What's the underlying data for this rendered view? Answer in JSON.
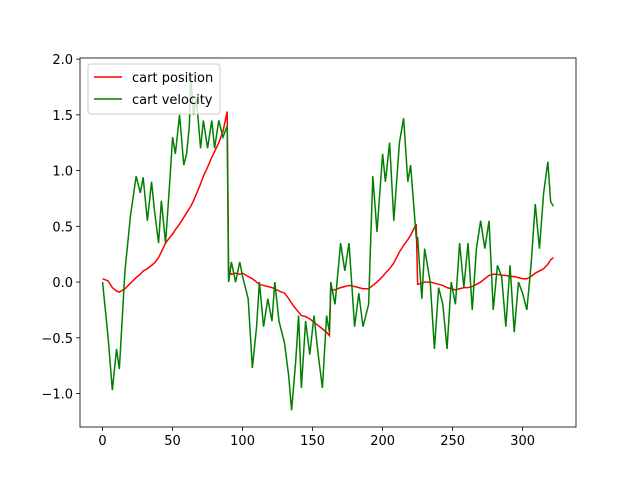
{
  "chart_data": {
    "type": "line",
    "x": [
      0,
      4,
      7,
      10,
      12,
      16,
      20,
      24,
      27,
      29,
      32,
      35,
      37,
      40,
      42,
      45,
      48,
      50,
      52,
      55,
      58,
      60,
      62,
      63,
      65,
      67,
      70,
      72,
      75,
      78,
      80,
      83,
      86,
      89,
      90,
      92,
      95,
      98,
      100,
      104,
      107,
      110,
      112,
      115,
      118,
      121,
      123,
      126,
      130,
      133,
      135,
      138,
      140,
      142,
      145,
      148,
      151,
      154,
      157,
      160,
      162,
      163,
      166,
      170,
      173,
      176,
      180,
      183,
      186,
      190,
      193,
      196,
      200,
      202,
      205,
      208,
      212,
      215,
      218,
      220,
      224,
      225,
      228,
      230,
      234,
      237,
      240,
      243,
      246,
      249,
      252,
      255,
      258,
      261,
      264,
      267,
      270,
      273,
      276,
      279,
      282,
      285,
      288,
      291,
      294,
      297,
      300,
      303,
      306,
      309,
      312,
      315,
      318,
      320,
      322
    ],
    "series": [
      {
        "name": "cart position",
        "color": "#ff0000",
        "values": [
          0.03,
          0.01,
          -0.05,
          -0.08,
          -0.09,
          -0.06,
          -0.01,
          0.04,
          0.07,
          0.1,
          0.12,
          0.15,
          0.17,
          0.22,
          0.27,
          0.35,
          0.4,
          0.43,
          0.47,
          0.52,
          0.58,
          0.62,
          0.66,
          0.68,
          0.73,
          0.79,
          0.88,
          0.95,
          1.03,
          1.12,
          1.17,
          1.25,
          1.35,
          1.53,
          0.1,
          0.07,
          0.08,
          0.07,
          0.08,
          0.05,
          0.03,
          0.0,
          -0.02,
          -0.03,
          -0.04,
          -0.05,
          -0.06,
          -0.08,
          -0.1,
          -0.15,
          -0.19,
          -0.24,
          -0.27,
          -0.3,
          -0.31,
          -0.33,
          -0.36,
          -0.39,
          -0.42,
          -0.45,
          -0.48,
          -0.07,
          -0.07,
          -0.05,
          -0.04,
          -0.03,
          -0.04,
          -0.05,
          -0.06,
          -0.06,
          -0.03,
          0.0,
          0.05,
          0.08,
          0.12,
          0.17,
          0.27,
          0.33,
          0.38,
          0.42,
          0.52,
          -0.02,
          -0.01,
          0.0,
          0.0,
          -0.01,
          -0.02,
          -0.03,
          -0.05,
          -0.06,
          -0.07,
          -0.06,
          -0.05,
          -0.05,
          -0.04,
          -0.02,
          0.0,
          0.03,
          0.06,
          0.07,
          0.07,
          0.06,
          0.06,
          0.05,
          0.05,
          0.04,
          0.03,
          0.03,
          0.05,
          0.08,
          0.1,
          0.12,
          0.16,
          0.2,
          0.22
        ]
      },
      {
        "name": "cart velocity",
        "color": "#008000",
        "values": [
          0.0,
          -0.5,
          -0.97,
          -0.6,
          -0.78,
          0.1,
          0.6,
          0.95,
          0.8,
          0.94,
          0.55,
          0.9,
          0.65,
          0.35,
          0.73,
          0.35,
          0.9,
          1.3,
          1.15,
          1.5,
          1.05,
          1.15,
          1.4,
          1.85,
          1.5,
          1.65,
          1.2,
          1.45,
          1.2,
          1.45,
          1.2,
          1.45,
          1.3,
          1.4,
          0.0,
          0.18,
          0.0,
          0.18,
          0.05,
          -0.15,
          -0.77,
          -0.4,
          0.0,
          -0.4,
          -0.15,
          -0.35,
          0.0,
          -0.35,
          -0.55,
          -0.85,
          -1.15,
          -0.7,
          -0.3,
          -0.95,
          -0.35,
          -0.65,
          -0.3,
          -0.65,
          -0.95,
          -0.3,
          -0.45,
          0.0,
          -0.2,
          0.35,
          0.1,
          0.35,
          -0.4,
          -0.1,
          -0.4,
          -0.2,
          0.95,
          0.45,
          1.15,
          0.9,
          1.25,
          0.55,
          1.25,
          1.47,
          0.9,
          1.05,
          0.4,
          0.4,
          -0.15,
          0.3,
          0.0,
          -0.6,
          -0.05,
          -0.2,
          -0.6,
          0.0,
          -0.2,
          0.35,
          -0.05,
          0.35,
          -0.25,
          0.3,
          0.55,
          0.3,
          0.55,
          -0.25,
          0.15,
          0.05,
          -0.4,
          0.15,
          -0.45,
          0.0,
          -0.1,
          -0.25,
          0.15,
          0.7,
          0.3,
          0.8,
          1.08,
          0.72,
          0.68
        ]
      }
    ],
    "xlim": [
      -16.1,
      338.1
    ],
    "ylim": [
      -1.3,
      2.01
    ],
    "xticks": [
      0,
      50,
      100,
      150,
      200,
      250,
      300
    ],
    "yticks": [
      {
        "value": -1.0,
        "label": "−1.0"
      },
      {
        "value": -0.5,
        "label": "−0.5"
      },
      {
        "value": 0.0,
        "label": "0.0"
      },
      {
        "value": 0.5,
        "label": "0.5"
      },
      {
        "value": 1.0,
        "label": "1.0"
      },
      {
        "value": 1.5,
        "label": "1.5"
      },
      {
        "value": 2.0,
        "label": "2.0"
      }
    ],
    "legend": "upper left",
    "grid": false
  }
}
